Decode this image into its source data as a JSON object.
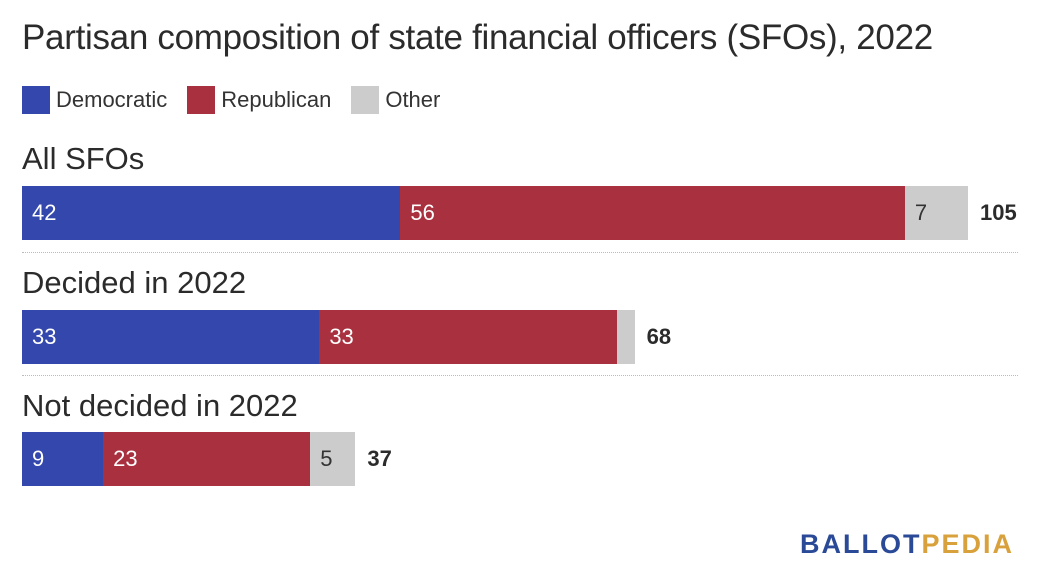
{
  "title": "Partisan composition of state financial officers (SFOs), 2022",
  "legend": [
    {
      "label": "Democratic",
      "color": "#3447ac"
    },
    {
      "label": "Republican",
      "color": "#a8303f"
    },
    {
      "label": "Other",
      "color": "#cccccc"
    }
  ],
  "chart_data": {
    "type": "bar",
    "orientation": "horizontal",
    "stacked": true,
    "title": "Partisan composition of state financial officers (SFOs), 2022",
    "categories": [
      "All SFOs",
      "Decided in 2022",
      "Not decided in 2022"
    ],
    "series": [
      {
        "name": "Democratic",
        "color": "#3447ac",
        "values": [
          42,
          33,
          9
        ]
      },
      {
        "name": "Republican",
        "color": "#a8303f",
        "values": [
          56,
          33,
          23
        ]
      },
      {
        "name": "Other",
        "color": "#cccccc",
        "values": [
          7,
          2,
          5
        ]
      }
    ],
    "segment_labels": [
      [
        "42",
        "56",
        "7"
      ],
      [
        "33",
        "33",
        ""
      ],
      [
        "9",
        "23",
        "5"
      ]
    ],
    "totals": [
      "105",
      "68",
      "37"
    ],
    "xlim": [
      0,
      105
    ],
    "grid": false,
    "legend_position": "top-left"
  },
  "branding": {
    "part1": "BALLOT",
    "part2": "PEDIA",
    "color1": "#2a4a97",
    "color2": "#d9a13b"
  }
}
